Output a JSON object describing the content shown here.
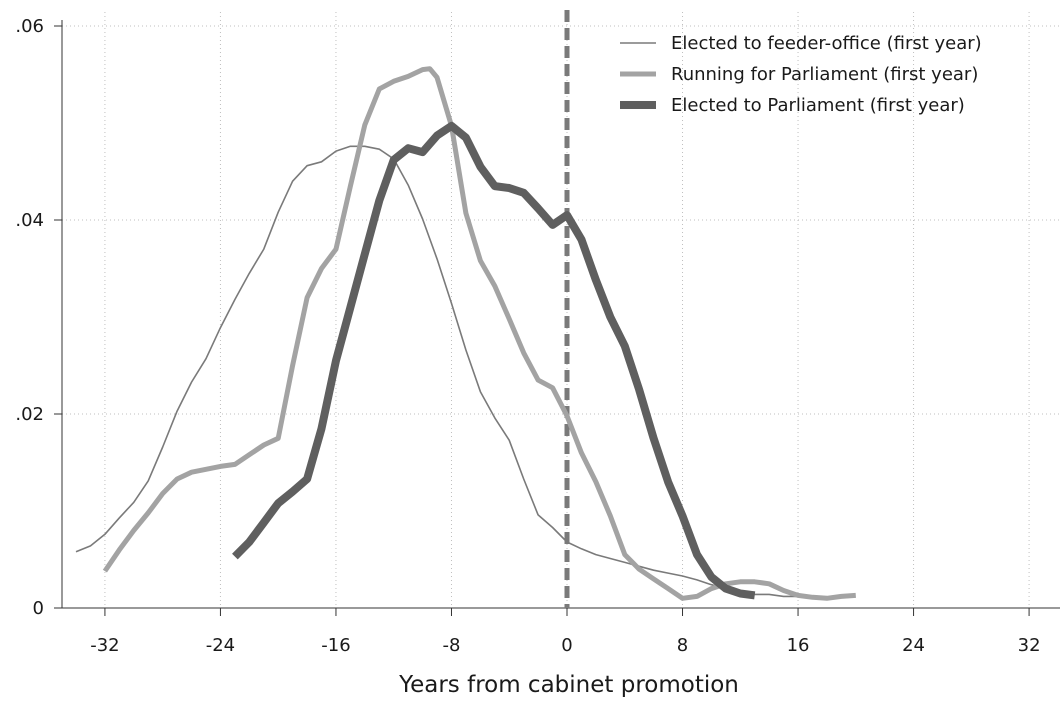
{
  "chart_data": {
    "type": "line",
    "title": "",
    "xlabel": "Years from cabinet promotion",
    "ylabel": "",
    "xlim": [
      -35,
      35
    ],
    "ylim": [
      0,
      0.06
    ],
    "x_ticks": [
      -32,
      -24,
      -16,
      -8,
      0,
      8,
      16,
      24,
      32
    ],
    "x_tick_labels": [
      "-32",
      "-24",
      "-16",
      "-8",
      "0",
      "8",
      "16",
      "24",
      "32"
    ],
    "y_ticks": [
      0,
      0.02,
      0.04,
      0.06
    ],
    "y_tick_labels": [
      "0",
      ".02",
      ".04",
      ".06"
    ],
    "grid": true,
    "legend_position": "top-right",
    "reference_line": {
      "x": 0,
      "style": "dashed",
      "color": "#7a7a7a"
    },
    "series": [
      {
        "name": "Elected to feeder-office (first year)",
        "color": "#7a7a7a",
        "weight": "thin",
        "points": [
          [
            -34,
            0.0058
          ],
          [
            -33,
            0.0064
          ],
          [
            -32,
            0.0076
          ],
          [
            -31,
            0.0093
          ],
          [
            -30,
            0.0109
          ],
          [
            -29,
            0.0131
          ],
          [
            -28,
            0.0166
          ],
          [
            -27,
            0.0203
          ],
          [
            -26,
            0.0233
          ],
          [
            -25,
            0.0257
          ],
          [
            -24,
            0.0289
          ],
          [
            -23,
            0.0318
          ],
          [
            -22,
            0.0345
          ],
          [
            -21,
            0.037
          ],
          [
            -20,
            0.0408
          ],
          [
            -19,
            0.044
          ],
          [
            -18,
            0.0456
          ],
          [
            -17,
            0.046
          ],
          [
            -16,
            0.0471
          ],
          [
            -15,
            0.0476
          ],
          [
            -14,
            0.0476
          ],
          [
            -13,
            0.0473
          ],
          [
            -12,
            0.0463
          ],
          [
            -11,
            0.0436
          ],
          [
            -10,
            0.0401
          ],
          [
            -9,
            0.036
          ],
          [
            -8,
            0.0314
          ],
          [
            -7,
            0.0266
          ],
          [
            -6,
            0.0223
          ],
          [
            -5,
            0.0196
          ],
          [
            -4,
            0.0173
          ],
          [
            -3,
            0.0133
          ],
          [
            -2,
            0.0096
          ],
          [
            -1,
            0.0083
          ],
          [
            0,
            0.0068
          ],
          [
            1,
            0.0061
          ],
          [
            2,
            0.0055
          ],
          [
            3,
            0.0051
          ],
          [
            4,
            0.0047
          ],
          [
            5,
            0.0043
          ],
          [
            6,
            0.0039
          ],
          [
            7,
            0.0036
          ],
          [
            8,
            0.0033
          ],
          [
            9,
            0.0029
          ],
          [
            10,
            0.0024
          ],
          [
            11,
            0.002
          ],
          [
            12,
            0.0016
          ],
          [
            13,
            0.0014
          ],
          [
            14,
            0.0014
          ],
          [
            15,
            0.0012
          ],
          [
            16,
            0.0012
          ]
        ]
      },
      {
        "name": "Running for Parliament (first year)",
        "color": "#a3a3a3",
        "weight": "medium",
        "points": [
          [
            -32,
            0.0038
          ],
          [
            -31,
            0.006
          ],
          [
            -30,
            0.008
          ],
          [
            -29,
            0.0098
          ],
          [
            -28,
            0.0118
          ],
          [
            -27,
            0.0133
          ],
          [
            -26,
            0.014
          ],
          [
            -25,
            0.0143
          ],
          [
            -24,
            0.0146
          ],
          [
            -23,
            0.0148
          ],
          [
            -22,
            0.0158
          ],
          [
            -21,
            0.0168
          ],
          [
            -20,
            0.0175
          ],
          [
            -19,
            0.025
          ],
          [
            -18,
            0.032
          ],
          [
            -17,
            0.035
          ],
          [
            -16,
            0.037
          ],
          [
            -15,
            0.0435
          ],
          [
            -14,
            0.0498
          ],
          [
            -13,
            0.0535
          ],
          [
            -12,
            0.0543
          ],
          [
            -11,
            0.0548
          ],
          [
            -10,
            0.0555
          ],
          [
            -9.5,
            0.0556
          ],
          [
            -9,
            0.0547
          ],
          [
            -8,
            0.0497
          ],
          [
            -7,
            0.0407
          ],
          [
            -6,
            0.0358
          ],
          [
            -5,
            0.0332
          ],
          [
            -4,
            0.0298
          ],
          [
            -3,
            0.0263
          ],
          [
            -2,
            0.0235
          ],
          [
            -1,
            0.0227
          ],
          [
            0,
            0.0198
          ],
          [
            1,
            0.016
          ],
          [
            2,
            0.013
          ],
          [
            3,
            0.0095
          ],
          [
            4,
            0.0055
          ],
          [
            5,
            0.004
          ],
          [
            6,
            0.003
          ],
          [
            7,
            0.002
          ],
          [
            8,
            0.001
          ],
          [
            9,
            0.0012
          ],
          [
            10,
            0.002
          ],
          [
            11,
            0.0025
          ],
          [
            12,
            0.0027
          ],
          [
            13,
            0.0027
          ],
          [
            14,
            0.0025
          ],
          [
            15,
            0.0018
          ],
          [
            16,
            0.0013
          ],
          [
            17,
            0.0011
          ],
          [
            18,
            0.001
          ],
          [
            19,
            0.0012
          ],
          [
            20,
            0.0013
          ]
        ]
      },
      {
        "name": "Elected to Parliament (first year)",
        "color": "#5f5f5f",
        "weight": "thick",
        "points": [
          [
            -23,
            0.0053
          ],
          [
            -22,
            0.0068
          ],
          [
            -21,
            0.0088
          ],
          [
            -20,
            0.0108
          ],
          [
            -19,
            0.012
          ],
          [
            -18,
            0.0133
          ],
          [
            -17,
            0.0185
          ],
          [
            -16,
            0.0255
          ],
          [
            -15,
            0.031
          ],
          [
            -14,
            0.0365
          ],
          [
            -13,
            0.042
          ],
          [
            -12,
            0.0462
          ],
          [
            -11,
            0.0474
          ],
          [
            -10,
            0.047
          ],
          [
            -9,
            0.0487
          ],
          [
            -8,
            0.0497
          ],
          [
            -7,
            0.0485
          ],
          [
            -6,
            0.0455
          ],
          [
            -5,
            0.0435
          ],
          [
            -4,
            0.0433
          ],
          [
            -3,
            0.0428
          ],
          [
            -2,
            0.0412
          ],
          [
            -1,
            0.0395
          ],
          [
            0,
            0.0405
          ],
          [
            1,
            0.038
          ],
          [
            2,
            0.0338
          ],
          [
            3,
            0.03
          ],
          [
            4,
            0.027
          ],
          [
            5,
            0.0225
          ],
          [
            6,
            0.0175
          ],
          [
            7,
            0.013
          ],
          [
            8,
            0.0095
          ],
          [
            9,
            0.0055
          ],
          [
            10,
            0.0032
          ],
          [
            11,
            0.002
          ],
          [
            12,
            0.0015
          ],
          [
            13,
            0.0013
          ]
        ]
      }
    ]
  }
}
